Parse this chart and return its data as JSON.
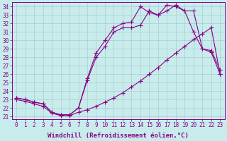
{
  "xlabel": "Windchill (Refroidissement éolien,°C)",
  "bg_color": "#c8ecec",
  "line_color": "#880088",
  "grid_color": "#aacccc",
  "xlim_min": -0.5,
  "xlim_max": 23.5,
  "ylim_min": 20.7,
  "ylim_max": 34.5,
  "xticks": [
    0,
    1,
    2,
    3,
    4,
    5,
    6,
    7,
    8,
    9,
    10,
    11,
    12,
    13,
    14,
    15,
    16,
    17,
    18,
    19,
    20,
    21,
    22,
    23
  ],
  "yticks": [
    21,
    22,
    23,
    24,
    25,
    26,
    27,
    28,
    29,
    30,
    31,
    32,
    33,
    34
  ],
  "line1": {
    "x": [
      0,
      1,
      2,
      3,
      4,
      5,
      6,
      7,
      8,
      9,
      10,
      11,
      12,
      13,
      14,
      15,
      16,
      17,
      18,
      19,
      20,
      21,
      22,
      23
    ],
    "y": [
      23.0,
      22.8,
      22.5,
      22.2,
      21.4,
      21.1,
      21.1,
      21.5,
      21.8,
      22.2,
      22.7,
      23.2,
      23.8,
      24.5,
      25.2,
      26.0,
      26.8,
      27.7,
      28.5,
      29.3,
      30.1,
      30.8,
      31.5,
      26.0
    ]
  },
  "line2": {
    "x": [
      0,
      1,
      2,
      3,
      4,
      5,
      6,
      7,
      8,
      9,
      10,
      11,
      12,
      13,
      14,
      15,
      16,
      17,
      18,
      19,
      20,
      21,
      22,
      23
    ],
    "y": [
      23.2,
      23.0,
      22.7,
      22.5,
      21.5,
      21.2,
      21.2,
      22.0,
      25.3,
      28.0,
      29.3,
      31.0,
      31.5,
      31.5,
      31.8,
      33.5,
      33.0,
      33.5,
      34.2,
      33.5,
      33.5,
      29.0,
      28.6,
      26.0
    ]
  },
  "line3": {
    "x": [
      0,
      1,
      2,
      3,
      4,
      5,
      6,
      7,
      8,
      9,
      10,
      11,
      12,
      13,
      14,
      15,
      16,
      17,
      18,
      19,
      20,
      21,
      22,
      23
    ],
    "y": [
      23.2,
      23.0,
      22.7,
      22.5,
      21.5,
      21.2,
      21.2,
      22.0,
      25.5,
      28.5,
      30.0,
      31.5,
      32.0,
      32.2,
      34.0,
      33.3,
      33.0,
      34.2,
      34.0,
      33.5,
      31.0,
      29.0,
      28.8,
      26.5
    ]
  },
  "font_family": "monospace",
  "tick_fontsize": 5.5,
  "label_fontsize": 6.5,
  "marker_size": 2.0,
  "line_width": 0.8
}
